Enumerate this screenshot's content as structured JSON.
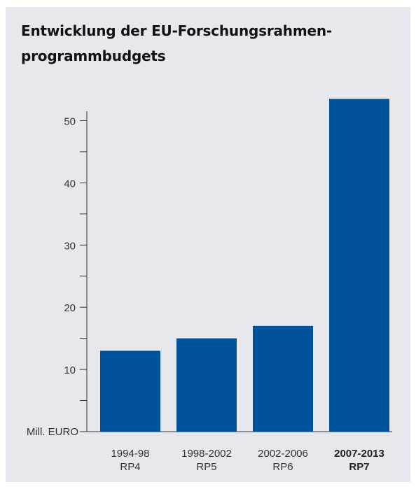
{
  "colors": {
    "panel_background": "#e7e8ee",
    "bar": "#00529b",
    "axis": "#333333"
  },
  "chart_data": {
    "type": "bar",
    "title": "Entwicklung der EU-Forschungsrahmen-programmbudgets",
    "title_lines": [
      "Entwicklung der EU-Forschungsrahmen-",
      "programmbudgets"
    ],
    "ylabel": "Mill. EURO",
    "xlabel": "",
    "ylim": [
      0,
      55
    ],
    "yticks_major": [
      10,
      20,
      30,
      40,
      50
    ],
    "yticks_minor": [
      5,
      15,
      25,
      35,
      45
    ],
    "categories": [
      {
        "period": "1994-98",
        "program": "RP4",
        "highlight": false
      },
      {
        "period": "1998-2002",
        "program": "RP5",
        "highlight": false
      },
      {
        "period": "2002-2006",
        "program": "RP6",
        "highlight": false
      },
      {
        "period": "2007-2013",
        "program": "RP7",
        "highlight": true
      }
    ],
    "values": [
      13,
      15,
      17,
      53.5
    ],
    "grid": false,
    "legend": "none"
  }
}
